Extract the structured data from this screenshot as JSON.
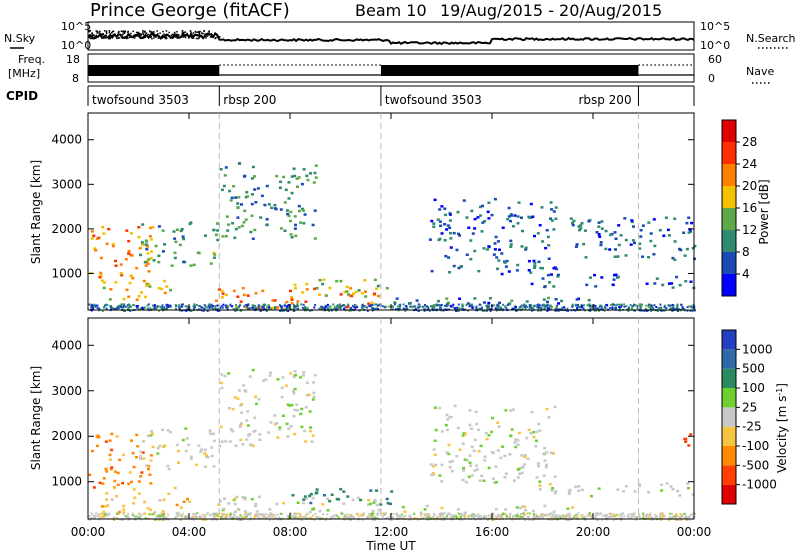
{
  "header": {
    "station": "Prince George (fitACF)",
    "beam": "Beam 10",
    "date_range": "19/Aug/2015 - 20/Aug/2015"
  },
  "status_panels": {
    "nsky_label": "N.Sky",
    "nsearch_label": "N.Search",
    "noise_ticks": [
      "10^5",
      "10^0"
    ],
    "freq_label_line1": "Freq.",
    "freq_label_line2": "[MHz]",
    "freq_ticks": [
      "18",
      "8"
    ],
    "nave_label": "Nave",
    "nave_ticks": [
      "60",
      "0"
    ],
    "cpid_label": "CPID",
    "cpid_segments": [
      {
        "name": "twofsound 3503",
        "start_hr": 0,
        "end_hr": 5.2
      },
      {
        "name": "rbsp 200",
        "start_hr": 5.2,
        "end_hr": 11.6
      },
      {
        "name": "twofsound 3503",
        "start_hr": 11.6,
        "end_hr": 21.8
      },
      {
        "name": "rbsp 200",
        "start_hr": 21.8,
        "end_hr": 24
      }
    ]
  },
  "chart_data": [
    {
      "type": "heatmap",
      "panel": "power",
      "ylabel": "Slant Range [km]",
      "xlabel": "",
      "x_range_hours": [
        0,
        24
      ],
      "ylim": [
        180,
        4600
      ],
      "y_ticks": [
        "1000",
        "2000",
        "3000",
        "4000"
      ],
      "x_tick_labels": [
        "00:00",
        "04:00",
        "08:00",
        "12:00",
        "16:00",
        "20:00",
        "00:00"
      ],
      "colorbar_label": "Power [dB]",
      "colorbar_ticks": [
        "4",
        "8",
        "12",
        "16",
        "20",
        "24",
        "28"
      ],
      "colorbar_range": [
        0,
        32
      ],
      "colors": [
        "#0000ff",
        "#1a4bb5",
        "#2f8a70",
        "#5da94a",
        "#f2c200",
        "#ff8000",
        "#ff3000",
        "#e00000"
      ],
      "scatter_regions": [
        {
          "t0": 0.0,
          "t1": 2.5,
          "r0": 900,
          "r1": 2100,
          "value": 22
        },
        {
          "t0": 0.5,
          "t1": 3.5,
          "r0": 400,
          "r1": 900,
          "value": 18
        },
        {
          "t0": 2.0,
          "t1": 5.2,
          "r0": 1200,
          "r1": 2200,
          "value": 12
        },
        {
          "t0": 5.2,
          "t1": 9.0,
          "r0": 1800,
          "r1": 3500,
          "value": 10
        },
        {
          "t0": 5.0,
          "t1": 11.5,
          "r0": 200,
          "r1": 700,
          "value": 22
        },
        {
          "t0": 8.0,
          "t1": 12.0,
          "r0": 500,
          "r1": 900,
          "value": 16
        },
        {
          "t0": 12.0,
          "t1": 20.0,
          "r0": 200,
          "r1": 500,
          "value": 8
        },
        {
          "t0": 13.5,
          "t1": 18.5,
          "r0": 1000,
          "r1": 2700,
          "value": 7
        },
        {
          "t0": 17.5,
          "t1": 24.0,
          "r0": 700,
          "r1": 1000,
          "value": 6
        },
        {
          "t0": 19.0,
          "t1": 24.0,
          "r0": 1300,
          "r1": 2300,
          "value": 7
        }
      ]
    },
    {
      "type": "heatmap",
      "panel": "velocity",
      "ylabel": "Slant Range [km]",
      "xlabel": "Time UT",
      "x_range_hours": [
        0,
        24
      ],
      "ylim": [
        180,
        4600
      ],
      "y_ticks": [
        "1000",
        "2000",
        "3000",
        "4000"
      ],
      "x_tick_labels": [
        "00:00",
        "04:00",
        "08:00",
        "12:00",
        "16:00",
        "20:00",
        "00:00"
      ],
      "colorbar_label": "Velocity [m s^-1]",
      "colorbar_ticks": [
        "1000",
        "500",
        "100",
        "25",
        "-25",
        "-100",
        "-500",
        "-1000"
      ],
      "colors": [
        "#2340c0",
        "#2e6aa8",
        "#2a8a60",
        "#6fcf30",
        "#c8c8c8",
        "#f5c542",
        "#ff8a00",
        "#ff4000",
        "#e00000"
      ],
      "scatter_regions": [
        {
          "t0": 0.0,
          "t1": 2.5,
          "r0": 900,
          "r1": 2100,
          "value": -500
        },
        {
          "t0": 0.5,
          "t1": 4.0,
          "r0": 300,
          "r1": 900,
          "value": -100
        },
        {
          "t0": 2.0,
          "t1": 5.2,
          "r0": 1300,
          "r1": 2200,
          "value": 0
        },
        {
          "t0": 5.2,
          "t1": 9.0,
          "r0": 1800,
          "r1": 3500,
          "value": 0
        },
        {
          "t0": 5.0,
          "t1": 11.5,
          "r0": 200,
          "r1": 700,
          "value": 0
        },
        {
          "t0": 8.0,
          "t1": 12.0,
          "r0": 500,
          "r1": 900,
          "value": 100
        },
        {
          "t0": 12.0,
          "t1": 20.0,
          "r0": 200,
          "r1": 500,
          "value": -25
        },
        {
          "t0": 13.5,
          "t1": 18.5,
          "r0": 1000,
          "r1": 2700,
          "value": 0
        },
        {
          "t0": 17.5,
          "t1": 24.0,
          "r0": 700,
          "r1": 1000,
          "value": 0
        },
        {
          "t0": 23.3,
          "t1": 24.0,
          "r0": 1800,
          "r1": 2200,
          "value": -1000
        }
      ]
    }
  ]
}
